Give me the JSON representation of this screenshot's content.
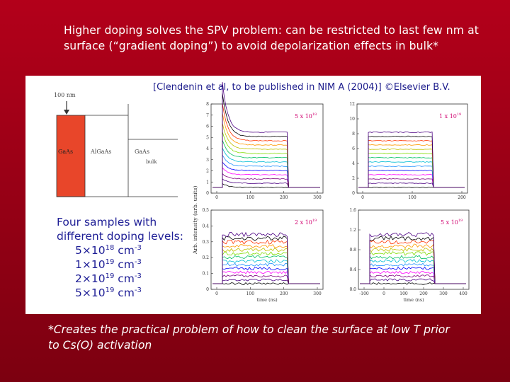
{
  "slide": {
    "title_line1": "Higher doping solves the SPV problem: can be restricted to last few nm at",
    "title_line2": "surface (“gradient doping”) to avoid depolarization effects in bulk*",
    "citation": "[Clendenin et al, to be published in NIM A (2004)] ©Elsevier B.V.",
    "note_line1": "*Creates the practical problem of how to clean the surface at low T prior",
    "note_line2": "to Cs(O) activation",
    "samples_heading_1": "Four samples with",
    "samples_heading_2": "different doping levels:",
    "doping_levels": [
      {
        "mantissa": "5",
        "exponent": "18",
        "unit": "cm",
        "unit_exp": "-3"
      },
      {
        "mantissa": "1",
        "exponent": "19",
        "unit": "cm",
        "unit_exp": "-3"
      },
      {
        "mantissa": "2",
        "exponent": "19",
        "unit": "cm",
        "unit_exp": "-3"
      },
      {
        "mantissa": "5",
        "exponent": "19",
        "unit": "cm",
        "unit_exp": "-3"
      }
    ]
  },
  "structure": {
    "thickness_label": "100 nm",
    "layers": [
      "GaAs",
      "AlGaAs",
      "GaAs"
    ],
    "bulk_label": "bulk"
  },
  "plots": {
    "y_axis_label": "Arb. intensity (arb. units)",
    "x_axis_label": "time (ns)",
    "panel_tl": {
      "label": "5 x 10",
      "exp": "18",
      "yticks": [
        "0",
        "1",
        "2",
        "3",
        "4",
        "5",
        "6",
        "7",
        "8"
      ],
      "xticks": [
        "0",
        "100",
        "200",
        "300"
      ]
    },
    "panel_tr": {
      "label": "1 x 10",
      "exp": "19",
      "yticks": [
        "0",
        "2",
        "4",
        "6",
        "8",
        "10",
        "12"
      ],
      "xticks": [
        "0",
        "100",
        "200"
      ]
    },
    "panel_bl": {
      "label": "2 x 10",
      "exp": "19",
      "yticks": [
        "0",
        "0.1",
        "0.2",
        "0.3",
        "0.4",
        "0.5"
      ],
      "xticks": [
        "0",
        "100",
        "200",
        "300"
      ]
    },
    "panel_br": {
      "label": "5 x 10",
      "exp": "19",
      "yticks": [
        "0.0",
        "0.4",
        "0.8",
        "1.2",
        "1.6"
      ],
      "xticks": [
        "-100",
        "0",
        "100",
        "200",
        "300",
        "400"
      ]
    }
  },
  "colors": {
    "background": "#9a0016",
    "title_text": "#ffffff",
    "samples_text": "#1f1f96",
    "citation_text": "#1c1c8c",
    "active_layer": "#e8462a",
    "series_palette": [
      "#000000",
      "#4b0082",
      "#800080",
      "#ff00ff",
      "#0000ff",
      "#1e90ff",
      "#00bcd4",
      "#00c060",
      "#7fdc00",
      "#c0c000",
      "#ff9900",
      "#ff3300"
    ]
  }
}
